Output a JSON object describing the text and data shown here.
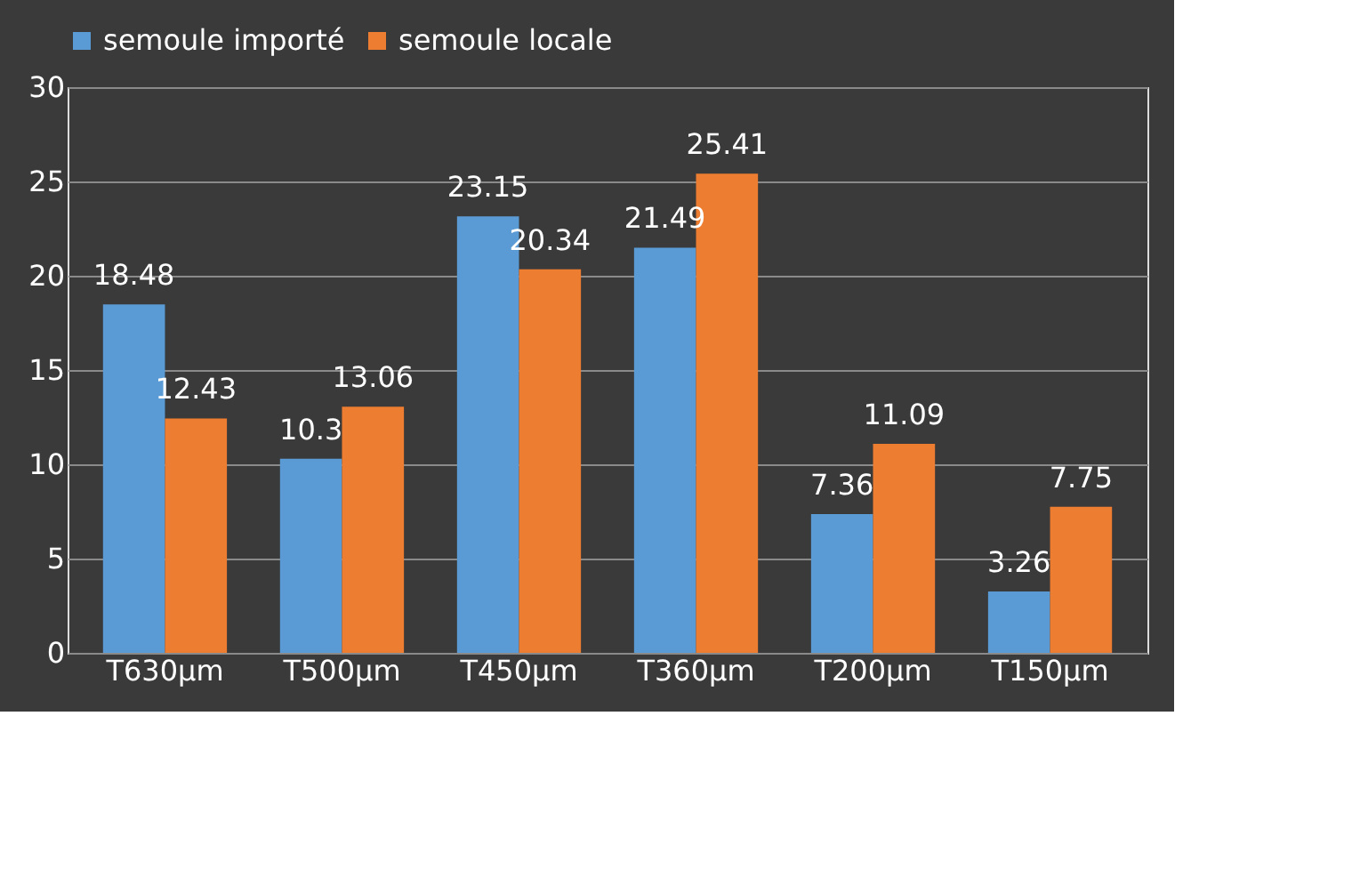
{
  "chart_data": {
    "type": "bar",
    "categories": [
      "T630µm",
      "T500µm",
      "T450µm",
      "T360µm",
      "T200µm",
      "T150µm"
    ],
    "series": [
      {
        "name": "semoule importé",
        "color": "#5b9bd5",
        "values": [
          18.48,
          10.3,
          23.15,
          21.49,
          7.36,
          3.26
        ]
      },
      {
        "name": "semoule locale",
        "color": "#ed7d31",
        "values": [
          12.43,
          13.06,
          20.34,
          25.41,
          11.09,
          7.75
        ]
      }
    ],
    "ylim": [
      0,
      30
    ],
    "yticks": [
      0,
      5,
      10,
      15,
      20,
      25,
      30
    ],
    "grid": "y",
    "legend": "top",
    "data_labels": true
  }
}
